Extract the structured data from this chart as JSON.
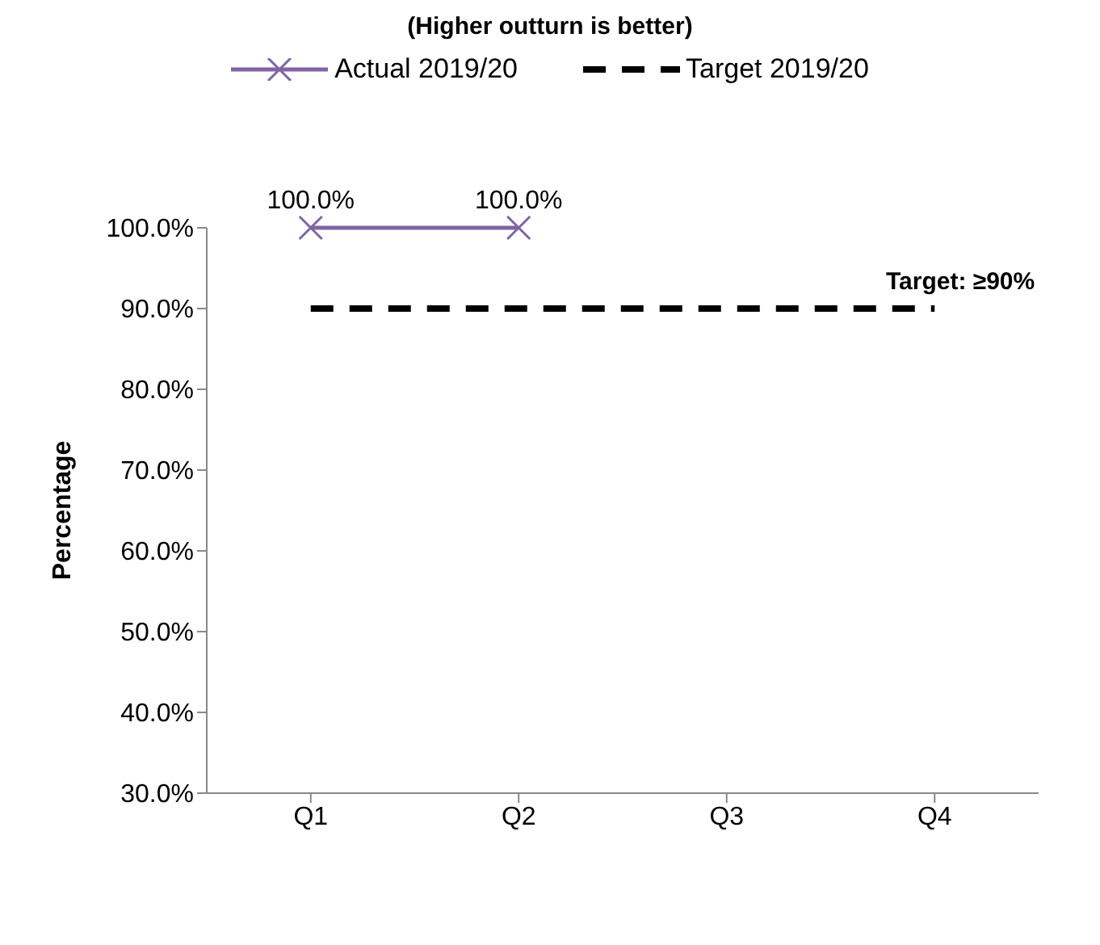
{
  "chart_data": {
    "type": "line",
    "title": "(Higher outturn is better)",
    "ylabel": "Percentage",
    "categories": [
      "Q1",
      "Q2",
      "Q3",
      "Q4"
    ],
    "series": [
      {
        "name": "Actual 2019/20",
        "color": "#8064a2",
        "values": [
          100,
          100,
          null,
          null
        ],
        "marker": "cross",
        "line_style": "solid",
        "value_labels": [
          "100.0%",
          "100.0%",
          null,
          null
        ]
      },
      {
        "name": "Target 2019/20",
        "color": "#000000",
        "values": [
          90,
          90,
          90,
          90
        ],
        "marker": "none",
        "line_style": "dashed"
      }
    ],
    "ylim": [
      30,
      100
    ],
    "yticks": [
      {
        "value": 30,
        "label": "30.0%"
      },
      {
        "value": 40,
        "label": "40.0%"
      },
      {
        "value": 50,
        "label": "50.0%"
      },
      {
        "value": 60,
        "label": "60.0%"
      },
      {
        "value": 70,
        "label": "70.0%"
      },
      {
        "value": 80,
        "label": "80.0%"
      },
      {
        "value": 90,
        "label": "90.0%"
      },
      {
        "value": 100,
        "label": "100.0%"
      }
    ],
    "grid": false,
    "legend": "top",
    "annotations": [
      {
        "text": "Target: ≥90%",
        "x": "Q4",
        "y": 90
      }
    ]
  }
}
